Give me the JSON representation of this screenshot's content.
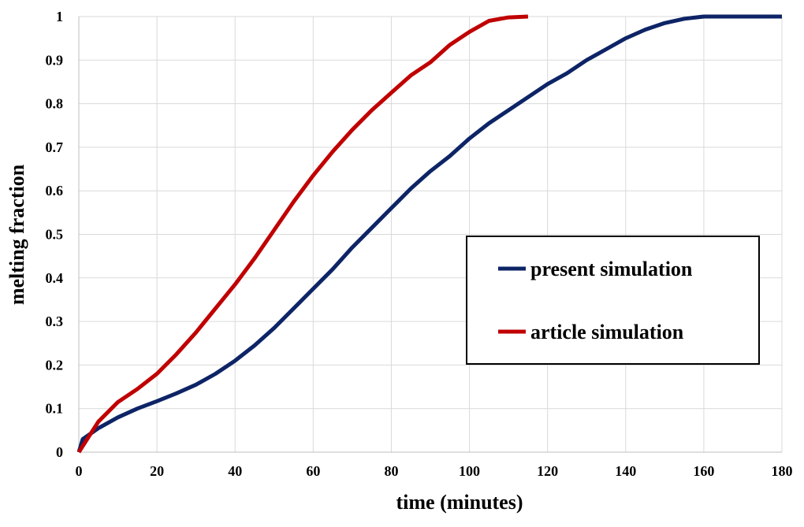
{
  "chart_data": {
    "type": "line",
    "title": "",
    "xlabel": "time (minutes)",
    "ylabel": "melting fraction",
    "xlim": [
      0,
      180
    ],
    "ylim": [
      0,
      1
    ],
    "xticks": [
      "0",
      "20",
      "40",
      "60",
      "80",
      "100",
      "120",
      "140",
      "160",
      "180"
    ],
    "yticks": [
      "0",
      "0.1",
      "0.2",
      "0.3",
      "0.4",
      "0.5",
      "0.6",
      "0.7",
      "0.8",
      "0.9",
      "1"
    ],
    "grid": true,
    "legend_position": "center-right",
    "series": [
      {
        "name": "present simulation",
        "color": "#0d2466",
        "x": [
          0,
          1,
          5,
          10,
          15,
          20,
          25,
          30,
          35,
          40,
          45,
          50,
          55,
          60,
          65,
          70,
          75,
          80,
          85,
          90,
          95,
          100,
          105,
          110,
          115,
          120,
          125,
          130,
          135,
          140,
          145,
          150,
          155,
          160,
          180
        ],
        "y": [
          0,
          0.03,
          0.055,
          0.08,
          0.1,
          0.117,
          0.135,
          0.155,
          0.18,
          0.21,
          0.245,
          0.285,
          0.33,
          0.375,
          0.42,
          0.47,
          0.515,
          0.56,
          0.605,
          0.645,
          0.68,
          0.72,
          0.755,
          0.785,
          0.815,
          0.845,
          0.87,
          0.9,
          0.925,
          0.95,
          0.97,
          0.985,
          0.995,
          1,
          1
        ]
      },
      {
        "name": "article simulation",
        "color": "#c00000",
        "x": [
          0,
          5,
          10,
          15,
          20,
          25,
          30,
          35,
          40,
          45,
          50,
          55,
          60,
          65,
          70,
          75,
          80,
          85,
          90,
          95,
          100,
          105,
          110,
          115
        ],
        "y": [
          0,
          0.07,
          0.115,
          0.145,
          0.18,
          0.225,
          0.275,
          0.33,
          0.385,
          0.445,
          0.51,
          0.575,
          0.635,
          0.69,
          0.74,
          0.785,
          0.825,
          0.865,
          0.895,
          0.935,
          0.965,
          0.99,
          0.998,
          1
        ]
      }
    ]
  }
}
